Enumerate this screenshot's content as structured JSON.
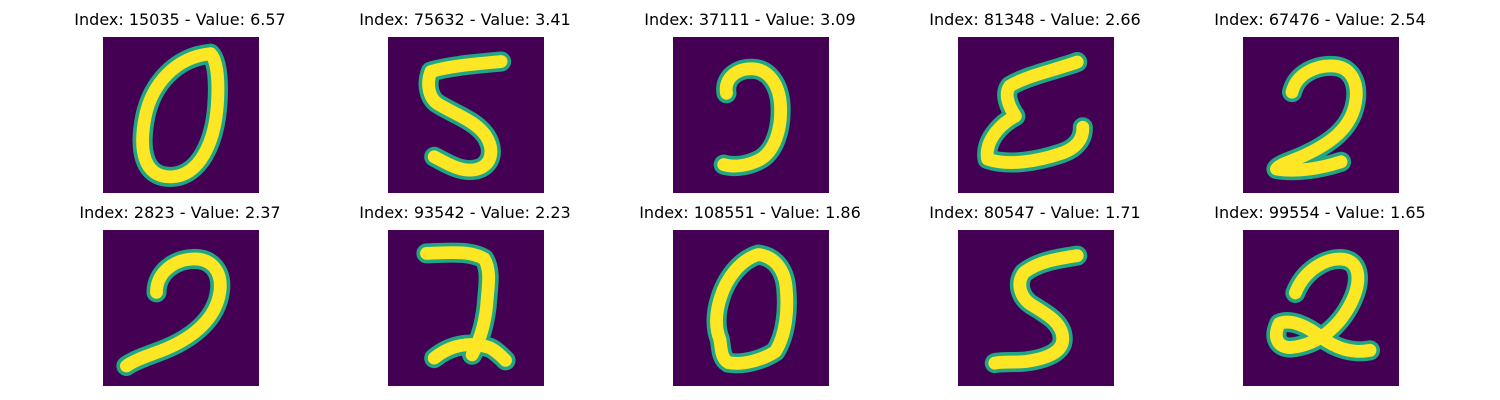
{
  "colors": {
    "background": "#440154",
    "stroke_core": "#fde725",
    "stroke_edge": "#21a685"
  },
  "grid": {
    "rows": 2,
    "columns": 5
  },
  "panels": [
    {
      "title": "Index: 15035 - Value: 6.57",
      "digit": "0"
    },
    {
      "title": "Index: 75632 - Value: 3.41",
      "digit": "5"
    },
    {
      "title": "Index: 37111 - Value: 3.09",
      "digit": "2"
    },
    {
      "title": "Index: 81348 - Value: 2.66",
      "digit": "2"
    },
    {
      "title": "Index: 67476 - Value: 2.54",
      "digit": "2"
    },
    {
      "title": "Index: 2823 - Value: 2.37",
      "digit": "2"
    },
    {
      "title": "Index: 93542 - Value: 2.23",
      "digit": "2"
    },
    {
      "title": "Index: 108551 - Value: 1.86",
      "digit": "0"
    },
    {
      "title": "Index: 80547 - Value: 1.71",
      "digit": "5"
    },
    {
      "title": "Index: 99554 - Value: 1.65",
      "digit": "2"
    }
  ]
}
